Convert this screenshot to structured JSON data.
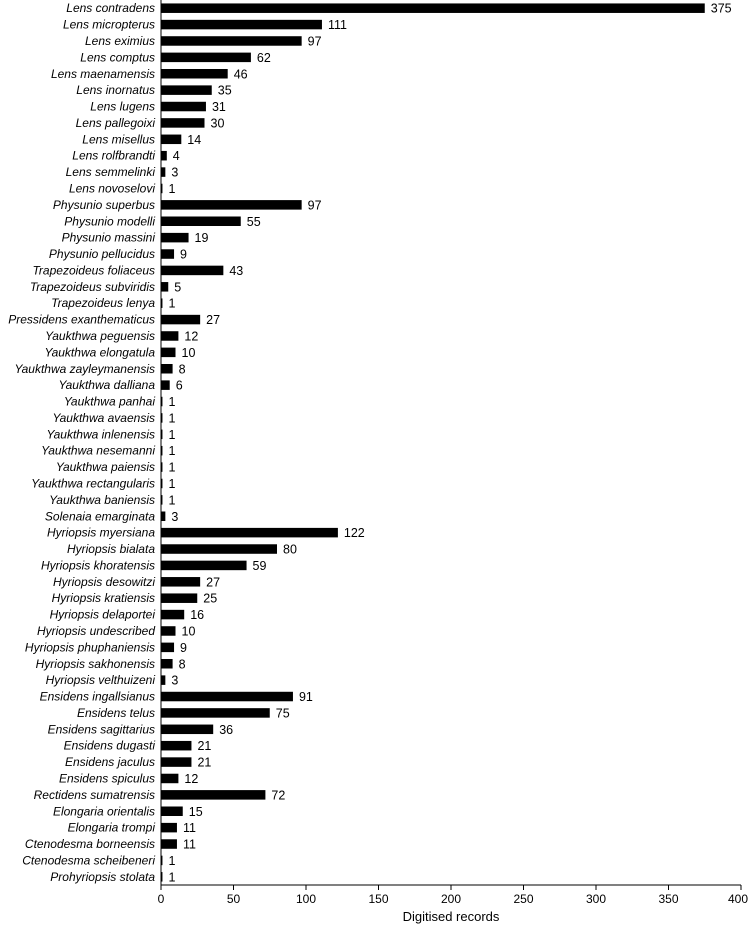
{
  "chart_data": {
    "type": "bar",
    "orientation": "horizontal",
    "title": "",
    "xlabel": "Digitised records",
    "ylabel": "",
    "xlim": [
      0,
      400
    ],
    "xticks": [
      0,
      50,
      100,
      150,
      200,
      250,
      300,
      350,
      400
    ],
    "grid": false,
    "bar_color": "#000000",
    "categories": [
      "Lens contradens",
      "Lens micropterus",
      "Lens eximius",
      "Lens comptus",
      "Lens maenamensis",
      "Lens inornatus",
      "Lens lugens",
      "Lens pallegoixi",
      "Lens misellus",
      "Lens rolfbrandti",
      "Lens semmelinki",
      "Lens novoselovi",
      "Physunio superbus",
      "Physunio modelli",
      "Physunio massini",
      "Physunio pellucidus",
      "Trapezoideus foliaceus",
      "Trapezoideus subviridis",
      "Trapezoideus lenya",
      "Pressidens exanthematicus",
      "Yaukthwa peguensis",
      "Yaukthwa elongatula",
      "Yaukthwa zayleymanensis",
      "Yaukthwa dalliana",
      "Yaukthwa panhai",
      "Yaukthwa avaensis",
      "Yaukthwa inlenensis",
      "Yaukthwa nesemanni",
      "Yaukthwa paiensis",
      "Yaukthwa rectangularis",
      "Yaukthwa baniensis",
      "Solenaia emarginata",
      "Hyriopsis myersiana",
      "Hyriopsis bialata",
      "Hyriopsis khoratensis",
      "Hyriopsis desowitzi",
      "Hyriopsis kratiensis",
      "Hyriopsis delaportei",
      "Hyriopsis undescribed",
      "Hyriopsis phuphaniensis",
      "Hyriopsis sakhonensis",
      "Hyriopsis velthuizeni",
      "Ensidens ingallsianus",
      "Ensidens telus",
      "Ensidens sagittarius",
      "Ensidens dugasti",
      "Ensidens jaculus",
      "Ensidens spiculus",
      "Rectidens sumatrensis",
      "Elongaria orientalis",
      "Elongaria trompi",
      "Ctenodesma borneensis",
      "Ctenodesma scheibeneri",
      "Prohyriopsis stolata"
    ],
    "values": [
      375,
      111,
      97,
      62,
      46,
      35,
      31,
      30,
      14,
      4,
      3,
      1,
      97,
      55,
      19,
      9,
      43,
      5,
      1,
      27,
      12,
      10,
      8,
      6,
      1,
      1,
      1,
      1,
      1,
      1,
      1,
      3,
      122,
      80,
      59,
      27,
      25,
      16,
      10,
      9,
      8,
      3,
      91,
      75,
      36,
      21,
      21,
      12,
      72,
      15,
      11,
      11,
      1,
      1
    ]
  }
}
